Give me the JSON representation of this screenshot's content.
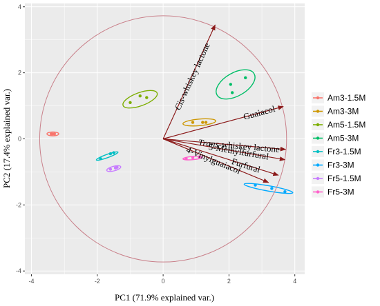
{
  "chart_data": {
    "type": "scatter",
    "subtype": "pca-biplot",
    "title": "",
    "xlabel": "PC1 (71.9% explained var.)",
    "ylabel": "PC2 (17.4% explained var.)",
    "xlim": [
      -4.2,
      4.3
    ],
    "ylim": [
      -4.1,
      4.1
    ],
    "xticks": [
      -4,
      -2,
      0,
      2,
      4
    ],
    "yticks": [
      -4,
      -2,
      0,
      2,
      4
    ],
    "grid": true,
    "background": "#ebebeb",
    "grid_color": "#ffffff",
    "circle": {
      "center": [
        0,
        0
      ],
      "radius": 3.75,
      "color": "#c9808a"
    },
    "legend_position": "right",
    "series": [
      {
        "name": "Am3-1.5M",
        "color": "#f8766d",
        "points": [
          [
            -3.4,
            0.15
          ],
          [
            -3.35,
            0.15
          ],
          [
            -3.3,
            0.15
          ]
        ],
        "ellipse": {
          "cx": -3.35,
          "cy": 0.15,
          "rx": 0.18,
          "ry": 0.06,
          "angle": 0
        }
      },
      {
        "name": "Am3-3M",
        "color": "#cd9600",
        "points": [
          [
            0.9,
            0.5
          ],
          [
            1.2,
            0.5
          ],
          [
            1.3,
            0.5
          ]
        ],
        "ellipse": {
          "cx": 1.1,
          "cy": 0.5,
          "rx": 0.5,
          "ry": 0.1,
          "angle": 5
        }
      },
      {
        "name": "Am5-1.5M",
        "color": "#7cae00",
        "points": [
          [
            -1.0,
            1.1
          ],
          [
            -0.7,
            1.3
          ],
          [
            -0.5,
            1.25
          ]
        ],
        "ellipse": {
          "cx": -0.7,
          "cy": 1.2,
          "rx": 0.55,
          "ry": 0.2,
          "angle": 20
        }
      },
      {
        "name": "Am5-3M",
        "color": "#00be67",
        "points": [
          [
            2.05,
            1.65
          ],
          [
            2.1,
            1.4
          ],
          [
            2.5,
            1.85
          ]
        ],
        "ellipse": {
          "cx": 2.2,
          "cy": 1.65,
          "rx": 0.65,
          "ry": 0.35,
          "angle": 30
        }
      },
      {
        "name": "Fr3-1.5M",
        "color": "#00bfc4",
        "points": [
          [
            -1.9,
            -0.6
          ],
          [
            -1.6,
            -0.45
          ],
          [
            -1.5,
            -0.42
          ]
        ],
        "ellipse": {
          "cx": -1.7,
          "cy": -0.52,
          "rx": 0.35,
          "ry": 0.05,
          "angle": 20
        }
      },
      {
        "name": "Fr3-3M",
        "color": "#00a9ff",
        "points": [
          [
            2.8,
            -1.4
          ],
          [
            3.3,
            -1.5
          ],
          [
            3.7,
            -1.6
          ]
        ],
        "ellipse": {
          "cx": 3.2,
          "cy": -1.5,
          "rx": 0.75,
          "ry": 0.08,
          "angle": -10
        }
      },
      {
        "name": "Fr5-1.5M",
        "color": "#c77cff",
        "points": [
          [
            -1.6,
            -0.92
          ],
          [
            -1.45,
            -0.88
          ],
          [
            -1.4,
            -0.86
          ]
        ],
        "ellipse": {
          "cx": -1.5,
          "cy": -0.9,
          "rx": 0.22,
          "ry": 0.07,
          "angle": 15
        }
      },
      {
        "name": "Fr5-3M",
        "color": "#ff61cc",
        "points": [
          [
            0.7,
            -0.6
          ],
          [
            0.9,
            -0.57
          ],
          [
            1.1,
            -0.55
          ]
        ],
        "ellipse": {
          "cx": 0.9,
          "cy": -0.58,
          "rx": 0.3,
          "ry": 0.05,
          "angle": 5
        }
      }
    ],
    "loadings": [
      {
        "name": "Cis-whiskey lactone",
        "x": 1.58,
        "y": 3.45,
        "italic_part": "Cis",
        "rest": "-whiskey lactone"
      },
      {
        "name": "Guaiacol",
        "x": 3.65,
        "y": 0.98,
        "italic_part": "",
        "rest": "Guaiacol"
      },
      {
        "name": "Trans-whiskey lactone",
        "x": 3.72,
        "y": -0.32,
        "italic_part": "Trans",
        "rest": "-whiskey lactone"
      },
      {
        "name": "5-Methylfurfural",
        "x": 3.7,
        "y": -0.63,
        "italic_part": "",
        "rest": "5-Methylfurfural"
      },
      {
        "name": "Furfural",
        "x": 3.5,
        "y": -1.1,
        "italic_part": "",
        "rest": "Furfural"
      },
      {
        "name": "4-Vinylguaiacol",
        "x": 3.2,
        "y": -1.32,
        "italic_part": "",
        "rest": "4-Vinylguaiacol"
      }
    ],
    "arrow_color": "#8b1a1a"
  }
}
